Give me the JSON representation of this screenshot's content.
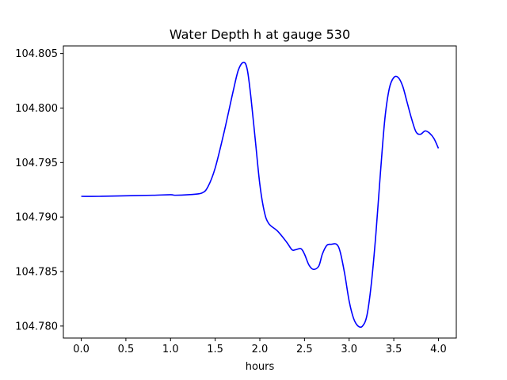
{
  "chart_data": {
    "type": "line",
    "title": "Water Depth h at gauge 530",
    "xlabel": "hours",
    "ylabel": "",
    "xlim": [
      -0.2,
      4.2
    ],
    "ylim": [
      104.7789,
      104.8057
    ],
    "xticks": [
      0.0,
      0.5,
      1.0,
      1.5,
      2.0,
      2.5,
      3.0,
      3.5,
      4.0
    ],
    "xtick_labels": [
      "0.0",
      "0.5",
      "1.0",
      "1.5",
      "2.0",
      "2.5",
      "3.0",
      "3.5",
      "4.0"
    ],
    "yticks": [
      104.78,
      104.785,
      104.79,
      104.795,
      104.8,
      104.805
    ],
    "ytick_labels": [
      "104.780",
      "104.785",
      "104.790",
      "104.795",
      "104.800",
      "104.805"
    ],
    "grid": false,
    "series": [
      {
        "color": "#0000ff",
        "x": [
          0.0,
          0.2,
          0.5,
          0.8,
          1.0,
          1.05,
          1.2,
          1.35,
          1.42,
          1.5,
          1.6,
          1.7,
          1.76,
          1.82,
          1.86,
          1.9,
          1.95,
          2.0,
          2.05,
          2.1,
          2.2,
          2.3,
          2.36,
          2.4,
          2.46,
          2.5,
          2.55,
          2.6,
          2.66,
          2.7,
          2.75,
          2.8,
          2.86,
          2.9,
          2.95,
          3.0,
          3.05,
          3.1,
          3.15,
          3.2,
          3.25,
          3.3,
          3.35,
          3.4,
          3.45,
          3.5,
          3.55,
          3.6,
          3.65,
          3.7,
          3.75,
          3.8,
          3.85,
          3.9,
          3.95,
          4.0
        ],
        "y": [
          104.7919,
          104.7919,
          104.79195,
          104.792,
          104.79205,
          104.792,
          104.79205,
          104.7922,
          104.7928,
          104.7945,
          104.7978,
          104.8015,
          104.8035,
          104.8042,
          104.8035,
          104.801,
          104.797,
          104.793,
          104.7905,
          104.7894,
          104.7887,
          104.7877,
          104.787,
          104.787,
          104.7871,
          104.7866,
          104.7856,
          104.7852,
          104.7855,
          104.7866,
          104.7874,
          104.7875,
          104.7875,
          104.7868,
          104.7848,
          104.7823,
          104.7807,
          104.78,
          104.78,
          104.781,
          104.784,
          104.7885,
          104.794,
          104.799,
          104.8018,
          104.8028,
          104.8028,
          104.802,
          104.8005,
          104.799,
          104.7978,
          104.7976,
          104.7979,
          104.7977,
          104.7972,
          104.7963
        ]
      }
    ]
  }
}
